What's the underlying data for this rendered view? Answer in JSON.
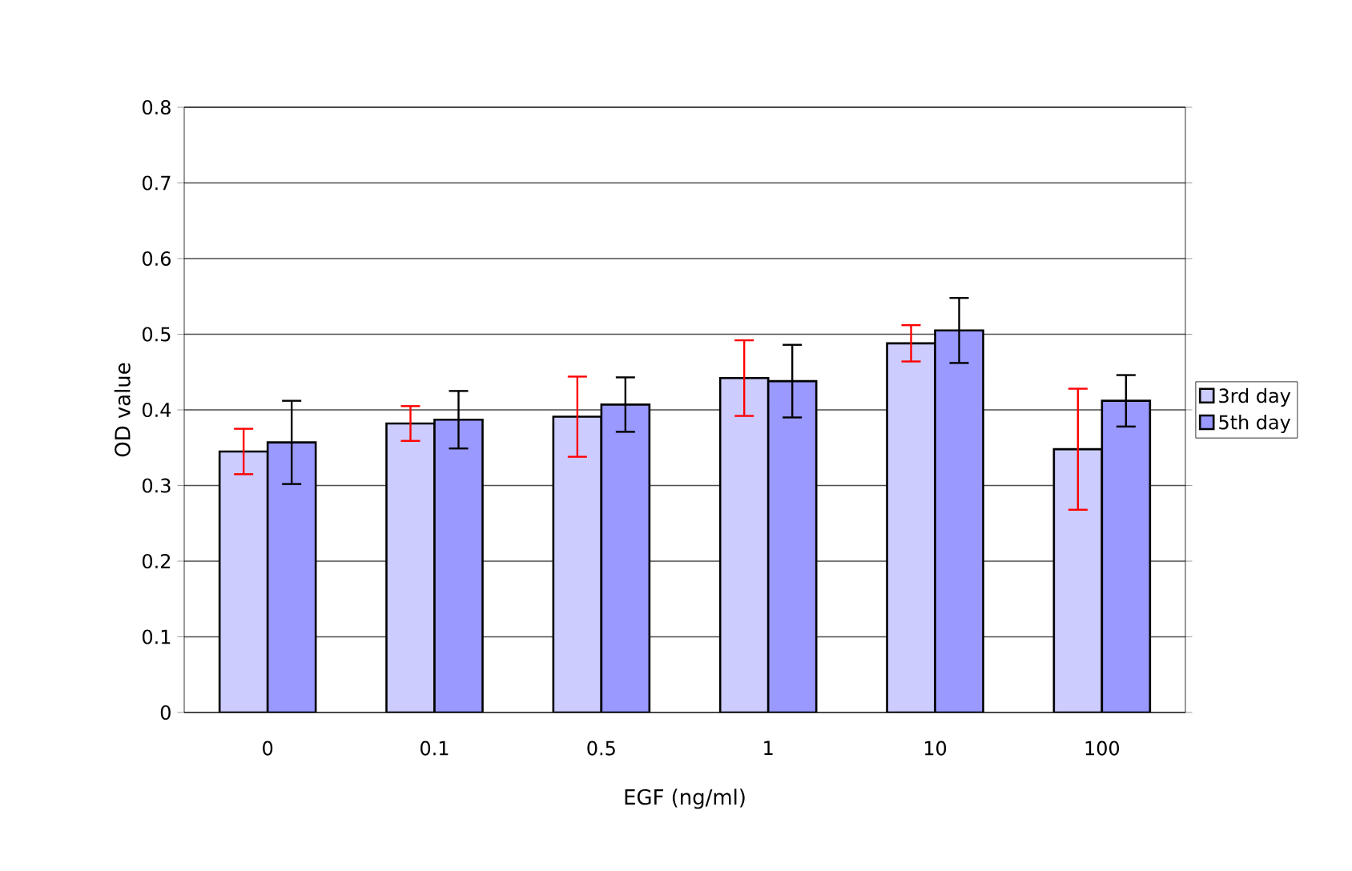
{
  "chart_data": {
    "type": "bar",
    "xlabel": "EGF (ng/ml)",
    "ylabel": "OD value",
    "categories": [
      "0",
      "0.1",
      "0.5",
      "1",
      "10",
      "100"
    ],
    "series": [
      {
        "name": "3rd day",
        "color": "#ccccff",
        "values": [
          0.345,
          0.382,
          0.391,
          0.442,
          0.488,
          0.348
        ],
        "errors": [
          0.03,
          0.023,
          0.053,
          0.05,
          0.024,
          0.08
        ]
      },
      {
        "name": "5th day",
        "color": "#9999ff",
        "values": [
          0.357,
          0.387,
          0.407,
          0.438,
          0.505,
          0.412
        ],
        "errors": [
          0.055,
          0.038,
          0.036,
          0.048,
          0.043,
          0.034
        ]
      }
    ],
    "ylim": [
      0,
      0.8
    ],
    "yticks": [
      0,
      0.1,
      0.2,
      0.3,
      0.4,
      0.5,
      0.6,
      0.7,
      0.8
    ],
    "grid": "y",
    "legend": "right"
  }
}
